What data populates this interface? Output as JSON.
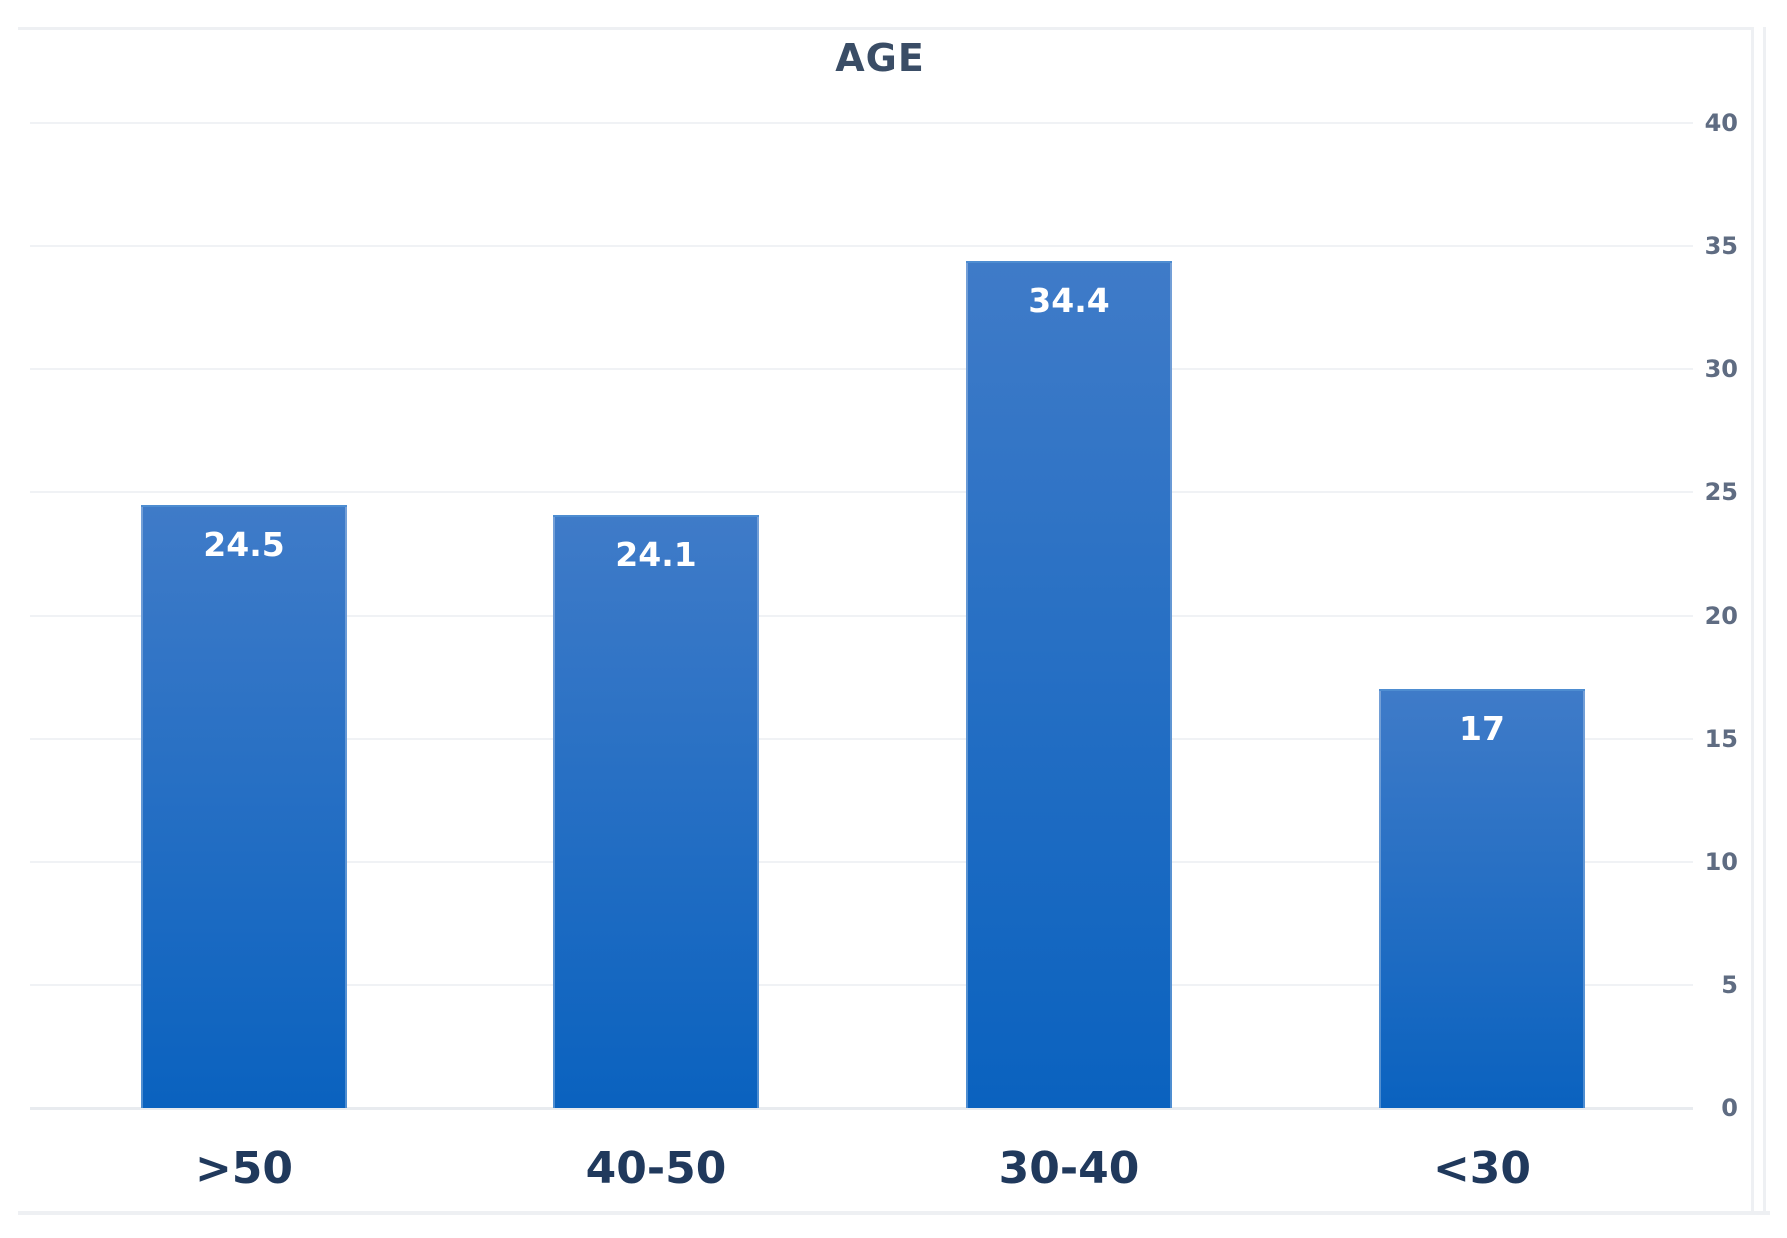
{
  "chart_data": {
    "type": "bar",
    "title": "AGE",
    "categories": [
      ">50",
      "40-50",
      "30-40",
      "<30"
    ],
    "values": [
      24.5,
      24.1,
      34.4,
      17
    ],
    "value_labels": [
      "24.5",
      "24.1",
      "34.4",
      "17"
    ],
    "xlabel": "",
    "ylabel": "",
    "ylim": [
      0,
      40
    ],
    "yticks": [
      0,
      5,
      10,
      15,
      20,
      25,
      30,
      35,
      40
    ],
    "grid": true,
    "legend": false,
    "y_axis_side": "right",
    "value_labels_position": "inside-top",
    "colors": {
      "bar_gradient_top": "#3F7BC8",
      "bar_gradient_bottom": "#0A62BF",
      "value_label": "#FFFFFF",
      "title": "#3A4D66",
      "x_label": "#20395C",
      "y_label": "#5F6C82",
      "gridline": "#F0F2F5",
      "baseline": "#E8EBEF",
      "frame": "#EEF0F3",
      "background": "#FFFFFF"
    }
  }
}
